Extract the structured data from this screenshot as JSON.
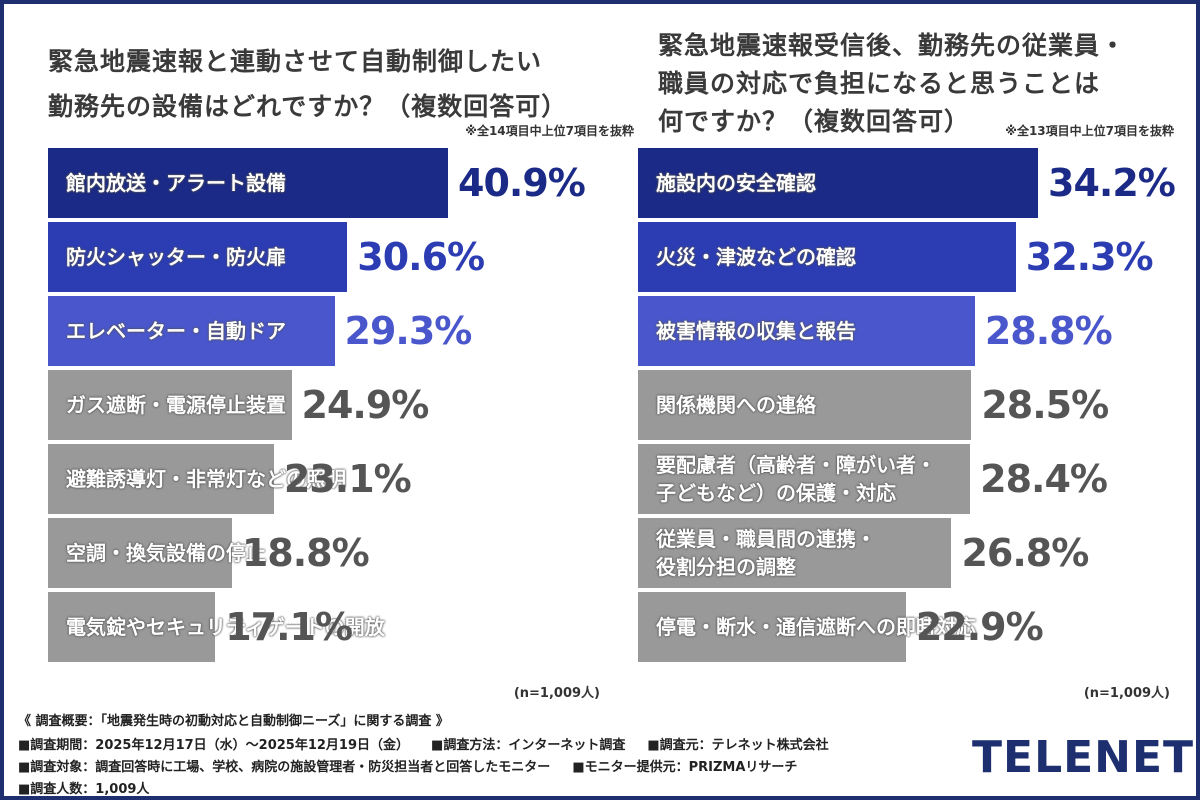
{
  "chart_data": [
    {
      "type": "bar",
      "orientation": "horizontal",
      "title": [
        "緊急地震速報と連動させて自動制御したい",
        "勤務先の設備はどれですか？（複数回答可）"
      ],
      "note": "※全14項目中上位7項目を抜粋",
      "categories": [
        "館内放送・アラート設備",
        "防火シャッター・防火扉",
        "エレベーター・自動ドア",
        "ガス遮断・電源停止装置",
        "避難誘導灯・非常灯などの照明",
        "空調・換気設備の停止",
        "電気錠やセキュリティゲートの開放"
      ],
      "values": [
        40.9,
        30.6,
        29.3,
        24.9,
        23.1,
        18.8,
        17.1
      ],
      "value_labels": [
        "40.9%",
        "30.6%",
        "29.3%",
        "24.9%",
        "23.1%",
        "18.8%",
        "17.1%"
      ],
      "colors": [
        "#1b2a86",
        "#2c3db4",
        "#4a57cc",
        "#999999",
        "#999999",
        "#999999",
        "#999999"
      ],
      "label_colors": [
        "#1b2a86",
        "#2c3db4",
        "#4a57cc",
        "#555555",
        "#555555",
        "#555555",
        "#555555"
      ],
      "sample": "(n=1,009人)"
    },
    {
      "type": "bar",
      "orientation": "horizontal",
      "title": [
        "緊急地震速報受信後、勤務先の従業員・",
        "職員の対応で負担になると思うことは",
        "何ですか？（複数回答可）"
      ],
      "note": "※全13項目中上位7項目を抜粋",
      "categories": [
        "施設内の安全確認",
        "火災・津波などの確認",
        "被害情報の収集と報告",
        "関係機関への連絡",
        "要配慮者（高齢者・障がい者・\n子どもなど）の保護・対応",
        "従業員・職員間の連携・\n役割分担の調整",
        "停電・断水・通信遮断への即時対応"
      ],
      "values": [
        34.2,
        32.3,
        28.8,
        28.5,
        28.4,
        26.8,
        22.9
      ],
      "value_labels": [
        "34.2%",
        "32.3%",
        "28.8%",
        "28.5%",
        "28.4%",
        "26.8%",
        "22.9%"
      ],
      "colors": [
        "#1b2a86",
        "#2c3db4",
        "#4a57cc",
        "#999999",
        "#999999",
        "#999999",
        "#999999"
      ],
      "label_colors": [
        "#1b2a86",
        "#2c3db4",
        "#4a57cc",
        "#555555",
        "#555555",
        "#555555",
        "#555555"
      ],
      "sample": "(n=1,009人)"
    }
  ],
  "footer": {
    "heading": "《 調査概要：「地震発生時の初動対応と自動制御ニーズ」に関する調査 》",
    "rows": [
      [
        "調査期間：2025年12月17日（水）〜2025年12月19日（金）",
        "調査方法：インターネット調査",
        "調査元：テレネット株式会社"
      ],
      [
        "調査対象：調査回答時に工場、学校、病院の施設管理者・防災担当者と回答したモニター",
        "モニター提供元：PRIZMAリサーチ"
      ],
      [
        "調査人数：1,009人"
      ]
    ]
  },
  "logo": "TELENET"
}
